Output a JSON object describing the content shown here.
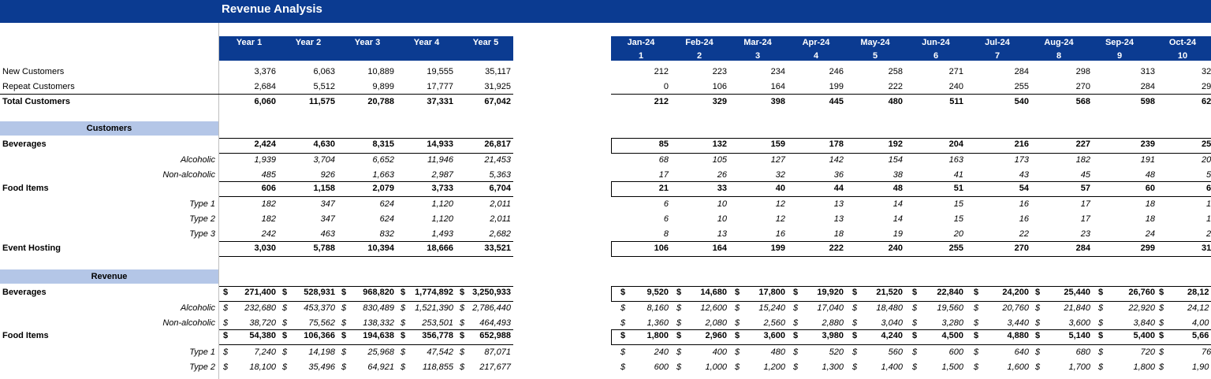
{
  "title": "Revenue Analysis",
  "years": [
    "Year 1",
    "Year 2",
    "Year 3",
    "Year 4",
    "Year 5"
  ],
  "months": [
    {
      "m": "Jan-24",
      "n": "1"
    },
    {
      "m": "Feb-24",
      "n": "2"
    },
    {
      "m": "Mar-24",
      "n": "3"
    },
    {
      "m": "Apr-24",
      "n": "4"
    },
    {
      "m": "May-24",
      "n": "5"
    },
    {
      "m": "Jun-24",
      "n": "6"
    },
    {
      "m": "Jul-24",
      "n": "7"
    },
    {
      "m": "Aug-24",
      "n": "8"
    },
    {
      "m": "Sep-24",
      "n": "9"
    },
    {
      "m": "Oct-24",
      "n": "10"
    }
  ],
  "currency_symbol": "$",
  "sections": {
    "customers": "Customers",
    "revenue": "Revenue"
  },
  "rows": [
    {
      "label": "New Customers",
      "style": "plain",
      "y": [
        "3,376",
        "6,063",
        "10,889",
        "19,555",
        "35,117"
      ],
      "m": [
        "212",
        "223",
        "234",
        "246",
        "258",
        "271",
        "284",
        "298",
        "313",
        "32"
      ]
    },
    {
      "label": "Repeat Customers",
      "style": "plain",
      "y": [
        "2,684",
        "5,512",
        "9,899",
        "17,777",
        "31,925"
      ],
      "m": [
        "0",
        "106",
        "164",
        "199",
        "222",
        "240",
        "255",
        "270",
        "284",
        "29"
      ]
    },
    {
      "label": "Total Customers",
      "style": "total",
      "y": [
        "6,060",
        "11,575",
        "20,788",
        "37,331",
        "67,042"
      ],
      "m": [
        "212",
        "329",
        "398",
        "445",
        "480",
        "511",
        "540",
        "568",
        "598",
        "62"
      ]
    },
    {
      "label": "Beverages",
      "style": "group",
      "y": [
        "2,424",
        "4,630",
        "8,315",
        "14,933",
        "26,817"
      ],
      "m": [
        "85",
        "132",
        "159",
        "178",
        "192",
        "204",
        "216",
        "227",
        "239",
        "25"
      ]
    },
    {
      "label": "Alcoholic",
      "style": "sub",
      "y": [
        "1,939",
        "3,704",
        "6,652",
        "11,946",
        "21,453"
      ],
      "m": [
        "68",
        "105",
        "127",
        "142",
        "154",
        "163",
        "173",
        "182",
        "191",
        "20"
      ]
    },
    {
      "label": "Non-alcoholic",
      "style": "sub",
      "y": [
        "485",
        "926",
        "1,663",
        "2,987",
        "5,363"
      ],
      "m": [
        "17",
        "26",
        "32",
        "36",
        "38",
        "41",
        "43",
        "45",
        "48",
        "5"
      ]
    },
    {
      "label": "Food Items",
      "style": "group",
      "y": [
        "606",
        "1,158",
        "2,079",
        "3,733",
        "6,704"
      ],
      "m": [
        "21",
        "33",
        "40",
        "44",
        "48",
        "51",
        "54",
        "57",
        "60",
        "6"
      ]
    },
    {
      "label": "Type 1",
      "style": "sub",
      "y": [
        "182",
        "347",
        "624",
        "1,120",
        "2,011"
      ],
      "m": [
        "6",
        "10",
        "12",
        "13",
        "14",
        "15",
        "16",
        "17",
        "18",
        "1"
      ]
    },
    {
      "label": "Type 2",
      "style": "sub",
      "y": [
        "182",
        "347",
        "624",
        "1,120",
        "2,011"
      ],
      "m": [
        "6",
        "10",
        "12",
        "13",
        "14",
        "15",
        "16",
        "17",
        "18",
        "1"
      ]
    },
    {
      "label": "Type 3",
      "style": "sub",
      "y": [
        "242",
        "463",
        "832",
        "1,493",
        "2,682"
      ],
      "m": [
        "8",
        "13",
        "16",
        "18",
        "19",
        "20",
        "22",
        "23",
        "24",
        "2"
      ]
    },
    {
      "label": "Event Hosting",
      "style": "group",
      "y": [
        "3,030",
        "5,788",
        "10,394",
        "18,666",
        "33,521"
      ],
      "m": [
        "106",
        "164",
        "199",
        "222",
        "240",
        "255",
        "270",
        "284",
        "299",
        "31"
      ]
    },
    {
      "label": "Beverages",
      "style": "rgroup",
      "y": [
        "271,400",
        "528,931",
        "968,820",
        "1,774,892",
        "3,250,933"
      ],
      "m": [
        "9,520",
        "14,680",
        "17,800",
        "19,920",
        "21,520",
        "22,840",
        "24,200",
        "25,440",
        "26,760",
        "28,12"
      ]
    },
    {
      "label": "Alcoholic",
      "style": "rsub",
      "y": [
        "232,680",
        "453,370",
        "830,489",
        "1,521,390",
        "2,786,440"
      ],
      "m": [
        "8,160",
        "12,600",
        "15,240",
        "17,040",
        "18,480",
        "19,560",
        "20,760",
        "21,840",
        "22,920",
        "24,12"
      ]
    },
    {
      "label": "Non-alcoholic",
      "style": "rsub",
      "y": [
        "38,720",
        "75,562",
        "138,332",
        "253,501",
        "464,493"
      ],
      "m": [
        "1,360",
        "2,080",
        "2,560",
        "2,880",
        "3,040",
        "3,280",
        "3,440",
        "3,600",
        "3,840",
        "4,00"
      ]
    },
    {
      "label": "Food Items",
      "style": "rgroup",
      "y": [
        "54,380",
        "106,366",
        "194,638",
        "356,778",
        "652,988"
      ],
      "m": [
        "1,800",
        "2,960",
        "3,600",
        "3,980",
        "4,240",
        "4,500",
        "4,880",
        "5,140",
        "5,400",
        "5,66"
      ]
    },
    {
      "label": "Type 1",
      "style": "rsub",
      "y": [
        "7,240",
        "14,198",
        "25,968",
        "47,542",
        "87,071"
      ],
      "m": [
        "240",
        "400",
        "480",
        "520",
        "560",
        "600",
        "640",
        "680",
        "720",
        "76"
      ]
    },
    {
      "label": "Type 2",
      "style": "rsub",
      "y": [
        "18,100",
        "35,496",
        "64,921",
        "118,855",
        "217,677"
      ],
      "m": [
        "600",
        "1,000",
        "1,200",
        "1,300",
        "1,400",
        "1,500",
        "1,600",
        "1,700",
        "1,800",
        "1,90"
      ]
    }
  ]
}
